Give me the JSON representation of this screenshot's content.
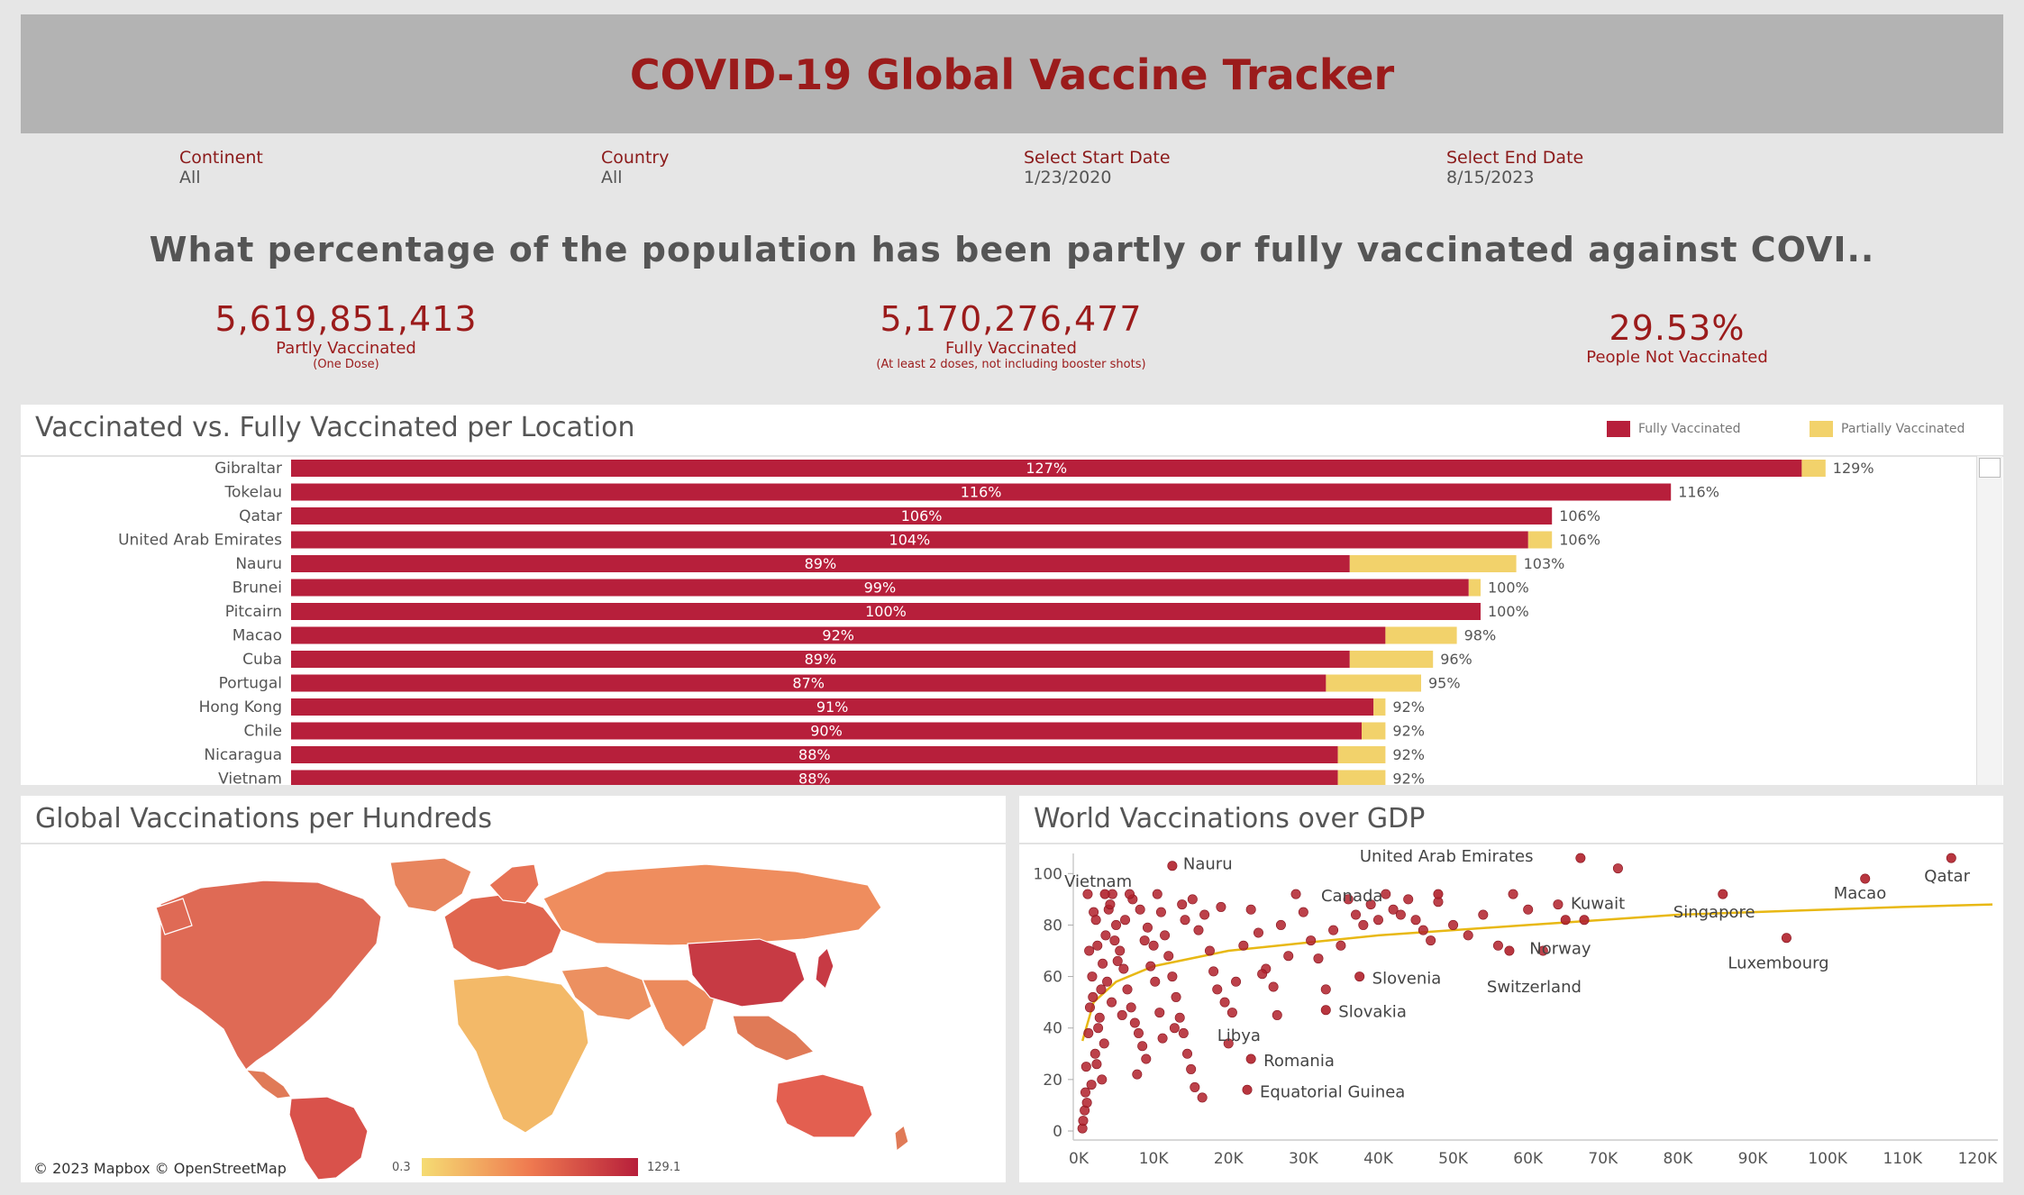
{
  "header": {
    "title": "COVID-19 Global Vaccine Tracker"
  },
  "filters": [
    {
      "label": "Continent",
      "value": "All"
    },
    {
      "label": "Country",
      "value": "All"
    },
    {
      "label": "Select Start Date",
      "value": "1/23/2020"
    },
    {
      "label": "Select End Date",
      "value": "8/15/2023"
    }
  ],
  "question": "What percentage of the population has been partly or fully vaccinated against COVI..",
  "kpis": [
    {
      "value": "5,619,851,413",
      "label": "Partly Vaccinated",
      "sub": "(One Dose)"
    },
    {
      "value": "5,170,276,477",
      "label": "Fully Vaccinated",
      "sub": "(At least 2 doses, not including booster shots)"
    },
    {
      "value": "29.53%",
      "label": "People Not Vaccinated",
      "sub": ""
    }
  ],
  "colors": {
    "fully": "#b71f3b",
    "partial": "#f2d26b",
    "title": "#9b1b1b",
    "trend": "#e8b814",
    "dot": "#b0202a"
  },
  "bar_panel": {
    "title": "Vaccinated vs. Fully Vaccinated per Location",
    "legend": [
      "Fully Vaccinated",
      "Partially Vaccinated"
    ]
  },
  "map_panel": {
    "title": "Global Vaccinations per Hundreds",
    "credit": "© 2023 Mapbox © OpenStreetMap",
    "legend_min": "0.3",
    "legend_max": "129.1"
  },
  "scatter_panel": {
    "title": "World Vaccinations over GDP"
  },
  "chart_data": [
    {
      "type": "bar",
      "title": "Vaccinated vs. Fully Vaccinated per Location",
      "categories": [
        "Gibraltar",
        "Tokelau",
        "Qatar",
        "United Arab Emirates",
        "Nauru",
        "Brunei",
        "Pitcairn",
        "Macao",
        "Cuba",
        "Portugal",
        "Hong Kong",
        "Chile",
        "Nicaragua",
        "Vietnam"
      ],
      "series": [
        {
          "name": "Fully Vaccinated",
          "values": [
            127,
            116,
            106,
            104,
            89,
            99,
            100,
            92,
            89,
            87,
            91,
            90,
            88,
            88
          ]
        },
        {
          "name": "Partially Vaccinated",
          "values": [
            2,
            0,
            0,
            2,
            14,
            1,
            0,
            6,
            7,
            8,
            1,
            2,
            4,
            4
          ]
        }
      ],
      "total_labels": [
        "129%",
        "116%",
        "106%",
        "106%",
        "103%",
        "100%",
        "100%",
        "98%",
        "96%",
        "95%",
        "92%",
        "92%",
        "92%",
        "92%"
      ],
      "stacked": true,
      "orientation": "horizontal"
    },
    {
      "type": "scatter",
      "title": "World Vaccinations over GDP",
      "xlim": [
        0,
        122000
      ],
      "ylim": [
        0,
        105
      ],
      "x_ticks": [
        "0K",
        "10K",
        "20K",
        "30K",
        "40K",
        "50K",
        "60K",
        "70K",
        "80K",
        "90K",
        "100K",
        "110K",
        "120K"
      ],
      "y_ticks": [
        "0",
        "20",
        "40",
        "60",
        "80",
        "100"
      ],
      "labeled_points": [
        {
          "name": "Vietnam",
          "x": 3500,
          "y": 92
        },
        {
          "name": "Nauru",
          "x": 12500,
          "y": 103
        },
        {
          "name": "United Arab Emirates",
          "x": 67000,
          "y": 106
        },
        {
          "name": "Canada",
          "x": 48000,
          "y": 92
        },
        {
          "name": "Kuwait",
          "x": 67500,
          "y": 82
        },
        {
          "name": "Singapore",
          "x": 86000,
          "y": 92
        },
        {
          "name": "Macao",
          "x": 105000,
          "y": 98
        },
        {
          "name": "Qatar",
          "x": 116500,
          "y": 106
        },
        {
          "name": "Norway",
          "x": 65000,
          "y": 82
        },
        {
          "name": "Switzerland",
          "x": 57500,
          "y": 70
        },
        {
          "name": "Luxembourg",
          "x": 94500,
          "y": 75
        },
        {
          "name": "Slovenia",
          "x": 37500,
          "y": 60
        },
        {
          "name": "Slovakia",
          "x": 33000,
          "y": 47
        },
        {
          "name": "Libya",
          "x": 18500,
          "y": 35
        },
        {
          "name": "Romania",
          "x": 23000,
          "y": 28
        },
        {
          "name": "Equatorial Guinea",
          "x": 22500,
          "y": 16
        }
      ],
      "points": [
        [
          1200,
          92
        ],
        [
          2000,
          85
        ],
        [
          2500,
          72
        ],
        [
          1800,
          60
        ],
        [
          1500,
          48
        ],
        [
          1300,
          38
        ],
        [
          1000,
          25
        ],
        [
          900,
          15
        ],
        [
          800,
          8
        ],
        [
          500,
          1
        ],
        [
          1700,
          18
        ],
        [
          2200,
          30
        ],
        [
          2800,
          44
        ],
        [
          3000,
          55
        ],
        [
          3200,
          65
        ],
        [
          3600,
          76
        ],
        [
          4000,
          86
        ],
        [
          4500,
          92
        ],
        [
          5000,
          80
        ],
        [
          5500,
          70
        ],
        [
          6000,
          63
        ],
        [
          6500,
          55
        ],
        [
          7000,
          48
        ],
        [
          7500,
          42
        ],
        [
          8000,
          38
        ],
        [
          8500,
          33
        ],
        [
          9000,
          28
        ],
        [
          4200,
          88
        ],
        [
          4800,
          74
        ],
        [
          5200,
          66
        ],
        [
          6200,
          82
        ],
        [
          7200,
          90
        ],
        [
          8200,
          86
        ],
        [
          9200,
          79
        ],
        [
          10500,
          92
        ],
        [
          11000,
          85
        ],
        [
          11500,
          76
        ],
        [
          12000,
          68
        ],
        [
          12500,
          60
        ],
        [
          13000,
          52
        ],
        [
          13500,
          44
        ],
        [
          14000,
          38
        ],
        [
          14500,
          30
        ],
        [
          15000,
          24
        ],
        [
          15500,
          17
        ],
        [
          16500,
          13
        ],
        [
          10000,
          72
        ],
        [
          10200,
          58
        ],
        [
          10800,
          46
        ],
        [
          11200,
          36
        ],
        [
          9600,
          64
        ],
        [
          13800,
          88
        ],
        [
          14200,
          82
        ],
        [
          15200,
          90
        ],
        [
          16000,
          78
        ],
        [
          16800,
          84
        ],
        [
          17500,
          70
        ],
        [
          18000,
          62
        ],
        [
          18500,
          55
        ],
        [
          19500,
          50
        ],
        [
          20500,
          46
        ],
        [
          21000,
          58
        ],
        [
          22000,
          72
        ],
        [
          23000,
          86
        ],
        [
          24000,
          77
        ],
        [
          25000,
          63
        ],
        [
          26000,
          56
        ],
        [
          27000,
          80
        ],
        [
          28000,
          68
        ],
        [
          29000,
          92
        ],
        [
          30000,
          85
        ],
        [
          31000,
          74
        ],
        [
          32000,
          67
        ],
        [
          33000,
          55
        ],
        [
          34000,
          78
        ],
        [
          35000,
          72
        ],
        [
          36000,
          90
        ],
        [
          37000,
          84
        ],
        [
          38000,
          80
        ],
        [
          39000,
          88
        ],
        [
          40000,
          82
        ],
        [
          41000,
          92
        ],
        [
          42000,
          86
        ],
        [
          43000,
          84
        ],
        [
          44000,
          90
        ],
        [
          45000,
          82
        ],
        [
          46000,
          78
        ],
        [
          47000,
          74
        ],
        [
          48000,
          89
        ],
        [
          50000,
          80
        ],
        [
          52000,
          76
        ],
        [
          54000,
          84
        ],
        [
          56000,
          72
        ],
        [
          58000,
          92
        ],
        [
          60000,
          86
        ],
        [
          62000,
          70
        ],
        [
          64000,
          88
        ],
        [
          72000,
          102
        ],
        [
          1900,
          52
        ],
        [
          2600,
          40
        ],
        [
          3400,
          34
        ],
        [
          1400,
          70
        ],
        [
          2300,
          82
        ],
        [
          3800,
          58
        ],
        [
          6800,
          92
        ],
        [
          12800,
          40
        ],
        [
          20000,
          34
        ],
        [
          26500,
          45
        ],
        [
          19000,
          87
        ],
        [
          8800,
          74
        ],
        [
          5800,
          45
        ],
        [
          4400,
          50
        ],
        [
          3100,
          20
        ],
        [
          600,
          4
        ],
        [
          1100,
          11
        ],
        [
          2400,
          26
        ],
        [
          7800,
          22
        ],
        [
          24500,
          61
        ]
      ],
      "trend": [
        [
          500,
          35
        ],
        [
          2000,
          50
        ],
        [
          5000,
          58
        ],
        [
          10000,
          64
        ],
        [
          20000,
          70
        ],
        [
          30000,
          73
        ],
        [
          40000,
          76
        ],
        [
          50000,
          78
        ],
        [
          60000,
          80
        ],
        [
          70000,
          82
        ],
        [
          80000,
          84
        ],
        [
          90000,
          85
        ],
        [
          100000,
          86
        ],
        [
          110000,
          87
        ],
        [
          122000,
          88
        ]
      ]
    },
    {
      "type": "heatmap",
      "title": "Global Vaccinations per Hundreds",
      "value_range": [
        0.3,
        129.1
      ]
    }
  ]
}
